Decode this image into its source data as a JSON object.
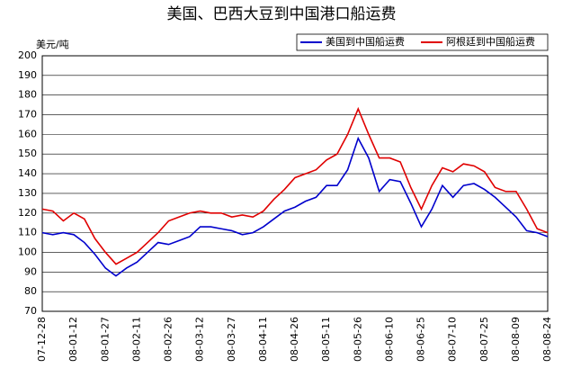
{
  "chart_data": {
    "type": "line",
    "title": "美国、巴西大豆到中国港口船运费",
    "y_label": "美元/吨",
    "categories": [
      "07-12-28",
      null,
      null,
      "08-01-12",
      null,
      null,
      "08-01-27",
      null,
      null,
      "08-02-11",
      null,
      null,
      "08-02-26",
      null,
      null,
      "08-03-12",
      null,
      null,
      "08-03-27",
      null,
      null,
      "08-04-11",
      null,
      null,
      "08-04-26",
      null,
      null,
      "08-05-11",
      null,
      null,
      "08-05-26",
      null,
      null,
      "08-06-10",
      null,
      null,
      "08-06-25",
      null,
      null,
      "08-07-10",
      null,
      null,
      "08-07-25",
      null,
      null,
      "08-08-09",
      null,
      null,
      "08-08-24"
    ],
    "series": [
      {
        "name": "美国到中国船运费",
        "color": "#0000cc",
        "values": [
          110,
          109,
          110,
          109,
          105,
          99,
          92,
          88,
          92,
          95,
          100,
          105,
          104,
          106,
          108,
          113,
          113,
          112,
          111,
          109,
          110,
          113,
          117,
          121,
          123,
          126,
          128,
          134,
          134,
          142,
          158,
          148,
          131,
          137,
          136,
          125,
          113,
          122,
          134,
          128,
          134,
          135,
          132,
          128,
          123,
          118,
          111,
          110,
          108
        ]
      },
      {
        "name": "阿根廷到中国船运费",
        "color": "#e00000",
        "values": [
          122,
          121,
          116,
          120,
          117,
          107,
          100,
          94,
          97,
          100,
          105,
          110,
          116,
          118,
          120,
          121,
          120,
          120,
          118,
          119,
          118,
          121,
          127,
          132,
          138,
          140,
          142,
          147,
          150,
          160,
          173,
          160,
          148,
          148,
          146,
          133,
          122,
          134,
          143,
          141,
          145,
          144,
          141,
          133,
          131,
          131,
          122,
          112,
          110
        ]
      }
    ],
    "ylim": [
      70,
      200
    ],
    "yticks": [
      70,
      80,
      90,
      100,
      110,
      120,
      130,
      140,
      150,
      160,
      170,
      180,
      190,
      200
    ],
    "grid": true
  }
}
